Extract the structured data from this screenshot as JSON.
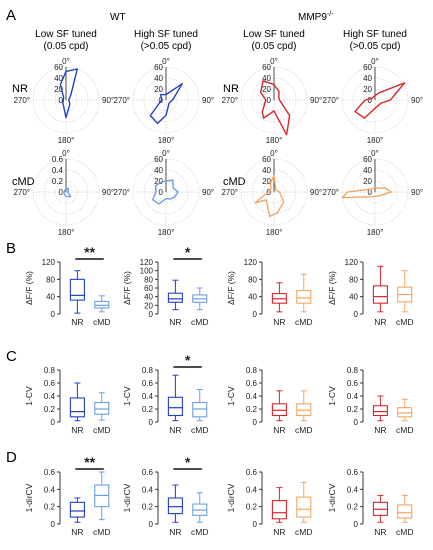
{
  "labels": {
    "panel_a": "A",
    "panel_b": "B",
    "panel_c": "C",
    "panel_d": "D",
    "wt": "WT",
    "mmp9": "MMP9",
    "mmp9_sup": "-/-",
    "col_low_1": "Low SF tuned",
    "col_low_2": "(0.05 cpd)",
    "col_high_1": "High SF tuned",
    "col_high_2": "(>0.05 cpd)",
    "row_nr": "NR",
    "row_cmd": "cMD",
    "deg0": "0°",
    "deg90": "90°",
    "deg180": "180°",
    "deg270": "270°",
    "group_nr": "NR",
    "group_cmd": "cMD",
    "sig_double": "**",
    "sig_single": "*"
  },
  "colors": {
    "wt_nr": "#2140c8",
    "wt_cmd": "#6f9fe0",
    "mmp_nr": "#d8262c",
    "mmp_cmd": "#f0a766",
    "axis": "#222222",
    "grid": "#cfcfcf"
  },
  "chart_data": [
    {
      "type": "polar",
      "panel": "A",
      "genotype": "WT",
      "tuning": "Low SF tuned (0.05 cpd)",
      "condition": "NR",
      "color": "wt_nr",
      "rticks": [
        "20",
        "40",
        "60"
      ],
      "rmax": 60,
      "angles": [
        0,
        20,
        45,
        90,
        135,
        180,
        225,
        270,
        315,
        340
      ],
      "radius": [
        52,
        60,
        12,
        5,
        10,
        32,
        8,
        5,
        6,
        30
      ]
    },
    {
      "type": "polar",
      "panel": "A",
      "genotype": "WT",
      "tuning": "High SF tuned (>0.05 cpd)",
      "condition": "NR",
      "color": "wt_nr",
      "rticks": [
        "20",
        "40",
        "60"
      ],
      "rmax": 60,
      "angles": [
        0,
        45,
        90,
        135,
        180,
        200,
        225,
        270,
        315
      ],
      "radius": [
        10,
        42,
        12,
        8,
        28,
        45,
        40,
        8,
        14
      ]
    },
    {
      "type": "polar",
      "panel": "A",
      "genotype": "MMP9-/-",
      "tuning": "Low SF tuned (0.05 cpd)",
      "condition": "NR",
      "color": "mmp_nr",
      "rticks": [
        "20",
        "40",
        "60"
      ],
      "rmax": 60,
      "angles": [
        0,
        30,
        60,
        90,
        135,
        160,
        180,
        210,
        225,
        270,
        300,
        330
      ],
      "radius": [
        28,
        18,
        10,
        10,
        40,
        70,
        20,
        38,
        30,
        15,
        28,
        40
      ]
    },
    {
      "type": "polar",
      "panel": "A",
      "genotype": "MMP9-/-",
      "tuning": "High SF tuned (>0.05 cpd)",
      "condition": "NR",
      "color": "mmp_nr",
      "rticks": [
        "20",
        "40",
        "60"
      ],
      "rmax": 60,
      "angles": [
        0,
        30,
        60,
        90,
        120,
        180,
        210,
        240,
        270,
        300
      ],
      "radius": [
        8,
        15,
        62,
        28,
        12,
        15,
        38,
        42,
        18,
        6
      ]
    },
    {
      "type": "polar",
      "panel": "A",
      "genotype": "WT",
      "tuning": "Low SF tuned (0.05 cpd)",
      "condition": "cMD",
      "color": "wt_cmd",
      "rticks": [
        "0.2",
        "0.4",
        "0.6"
      ],
      "rmax": 0.6,
      "angles": [
        0,
        30,
        60,
        90,
        135,
        180,
        225,
        270,
        315
      ],
      "radius": [
        0.05,
        0.08,
        0.05,
        0.03,
        0.12,
        0.08,
        0.05,
        0.03,
        0.04
      ]
    },
    {
      "type": "polar",
      "panel": "A",
      "genotype": "WT",
      "tuning": "High SF tuned (>0.05 cpd)",
      "condition": "cMD",
      "color": "wt_cmd",
      "rticks": [
        "20",
        "40",
        "60"
      ],
      "rmax": 60,
      "angles": [
        0,
        30,
        60,
        90,
        120,
        150,
        180,
        210,
        240,
        270,
        300,
        330
      ],
      "radius": [
        20,
        25,
        15,
        22,
        18,
        15,
        12,
        25,
        28,
        18,
        22,
        20
      ]
    },
    {
      "type": "polar",
      "panel": "A",
      "genotype": "MMP9-/-",
      "tuning": "Low SF tuned (0.05 cpd)",
      "condition": "cMD",
      "color": "mmp_cmd",
      "rticks": [
        "20",
        "40",
        "60"
      ],
      "rmax": 60,
      "angles": [
        0,
        20,
        45,
        90,
        135,
        170,
        190,
        225,
        240,
        270,
        315,
        340
      ],
      "radius": [
        30,
        8,
        5,
        10,
        25,
        38,
        45,
        20,
        40,
        10,
        8,
        18
      ]
    },
    {
      "type": "polar",
      "panel": "A",
      "genotype": "MMP9-/-",
      "tuning": "High SF tuned (>0.05 cpd)",
      "condition": "cMD",
      "color": "mmp_cmd",
      "rticks": [
        "20",
        "40",
        "60"
      ],
      "rmax": 60,
      "angles": [
        0,
        45,
        70,
        90,
        135,
        180,
        225,
        260,
        270,
        315
      ],
      "radius": [
        8,
        10,
        20,
        30,
        10,
        8,
        12,
        60,
        50,
        8
      ]
    },
    {
      "type": "box",
      "panel": "B",
      "ylabel": "ΔF/F (%)",
      "ylim": [
        0,
        120
      ],
      "yticks": [
        0,
        40,
        80,
        120
      ],
      "categories": [
        "NR",
        "cMD"
      ],
      "colors": [
        "wt_nr",
        "wt_cmd"
      ],
      "sig": "**",
      "boxes": [
        {
          "min": 2,
          "q1": 32,
          "median": 43,
          "q3": 80,
          "max": 100
        },
        {
          "min": 5,
          "q1": 14,
          "median": 20,
          "q3": 29,
          "max": 42
        }
      ]
    },
    {
      "type": "box",
      "panel": "B",
      "ylabel": "ΔF/F (%)",
      "ylim": [
        0,
        120
      ],
      "yticks": [
        0,
        20,
        40,
        60,
        80,
        100,
        120
      ],
      "categories": [
        "NR",
        "cMD"
      ],
      "colors": [
        "wt_nr",
        "wt_cmd"
      ],
      "sig": "*",
      "boxes": [
        {
          "min": 10,
          "q1": 27,
          "median": 35,
          "q3": 48,
          "max": 78
        },
        {
          "min": 10,
          "q1": 27,
          "median": 35,
          "q3": 44,
          "max": 60
        }
      ]
    },
    {
      "type": "box",
      "panel": "B",
      "ylabel": "ΔF/F (%)",
      "ylim": [
        0,
        120
      ],
      "yticks": [
        0,
        40,
        80,
        120
      ],
      "categories": [
        "NR",
        "cMD"
      ],
      "colors": [
        "mmp_nr",
        "mmp_cmd"
      ],
      "sig": "",
      "boxes": [
        {
          "min": 5,
          "q1": 25,
          "median": 35,
          "q3": 47,
          "max": 72
        },
        {
          "min": 5,
          "q1": 25,
          "median": 37,
          "q3": 54,
          "max": 92
        }
      ]
    },
    {
      "type": "box",
      "panel": "B",
      "ylabel": "ΔF/F (%)",
      "ylim": [
        0,
        120
      ],
      "yticks": [
        0,
        40,
        80,
        120
      ],
      "categories": [
        "NR",
        "cMD"
      ],
      "colors": [
        "mmp_nr",
        "mmp_cmd"
      ],
      "sig": "",
      "boxes": [
        {
          "min": 5,
          "q1": 25,
          "median": 40,
          "q3": 65,
          "max": 110
        },
        {
          "min": 5,
          "q1": 28,
          "median": 45,
          "q3": 62,
          "max": 100
        }
      ]
    },
    {
      "type": "box",
      "panel": "C",
      "ylabel": "1-CV",
      "ylim": [
        0,
        0.8
      ],
      "yticks": [
        0,
        0.2,
        0.4,
        0.6,
        0.8
      ],
      "categories": [
        "NR",
        "cMD"
      ],
      "colors": [
        "wt_nr",
        "wt_cmd"
      ],
      "sig": "",
      "boxes": [
        {
          "min": 0.02,
          "q1": 0.08,
          "median": 0.16,
          "q3": 0.37,
          "max": 0.6
        },
        {
          "min": 0.03,
          "q1": 0.12,
          "median": 0.2,
          "q3": 0.3,
          "max": 0.45
        }
      ]
    },
    {
      "type": "box",
      "panel": "C",
      "ylabel": "1-CV",
      "ylim": [
        0,
        0.8
      ],
      "yticks": [
        0,
        0.2,
        0.4,
        0.6,
        0.8
      ],
      "categories": [
        "NR",
        "cMD"
      ],
      "colors": [
        "wt_nr",
        "wt_cmd"
      ],
      "sig": "*",
      "boxes": [
        {
          "min": 0.02,
          "q1": 0.1,
          "median": 0.22,
          "q3": 0.38,
          "max": 0.72
        },
        {
          "min": 0.02,
          "q1": 0.08,
          "median": 0.2,
          "q3": 0.3,
          "max": 0.5
        }
      ]
    },
    {
      "type": "box",
      "panel": "C",
      "ylabel": "1-CV",
      "ylim": [
        0,
        0.8
      ],
      "yticks": [
        0,
        0.2,
        0.4,
        0.6,
        0.8
      ],
      "categories": [
        "NR",
        "cMD"
      ],
      "colors": [
        "mmp_nr",
        "mmp_cmd"
      ],
      "sig": "",
      "boxes": [
        {
          "min": 0.02,
          "q1": 0.1,
          "median": 0.18,
          "q3": 0.28,
          "max": 0.48
        },
        {
          "min": 0.02,
          "q1": 0.1,
          "median": 0.18,
          "q3": 0.28,
          "max": 0.48
        }
      ]
    },
    {
      "type": "box",
      "panel": "C",
      "ylabel": "1-CV",
      "ylim": [
        0,
        0.8
      ],
      "yticks": [
        0,
        0.2,
        0.4,
        0.6,
        0.8
      ],
      "categories": [
        "NR",
        "cMD"
      ],
      "colors": [
        "mmp_nr",
        "mmp_cmd"
      ],
      "sig": "",
      "boxes": [
        {
          "min": 0.02,
          "q1": 0.1,
          "median": 0.16,
          "q3": 0.25,
          "max": 0.4
        },
        {
          "min": 0.02,
          "q1": 0.08,
          "median": 0.14,
          "q3": 0.22,
          "max": 0.35
        }
      ]
    },
    {
      "type": "box",
      "panel": "D",
      "ylabel": "1-dirCV",
      "ylim": [
        0,
        0.6
      ],
      "yticks": [
        0,
        0.2,
        0.4,
        0.6
      ],
      "categories": [
        "NR",
        "cMD"
      ],
      "colors": [
        "wt_nr",
        "wt_cmd"
      ],
      "sig": "**",
      "boxes": [
        {
          "min": 0.02,
          "q1": 0.08,
          "median": 0.15,
          "q3": 0.25,
          "max": 0.3
        },
        {
          "min": 0.05,
          "q1": 0.2,
          "median": 0.33,
          "q3": 0.45,
          "max": 0.6
        }
      ]
    },
    {
      "type": "box",
      "panel": "D",
      "ylabel": "1-dirCV",
      "ylim": [
        0,
        0.6
      ],
      "yticks": [
        0,
        0.2,
        0.4,
        0.6
      ],
      "categories": [
        "NR",
        "cMD"
      ],
      "colors": [
        "wt_nr",
        "wt_cmd"
      ],
      "sig": "*",
      "boxes": [
        {
          "min": 0.02,
          "q1": 0.12,
          "median": 0.2,
          "q3": 0.3,
          "max": 0.45
        },
        {
          "min": 0.02,
          "q1": 0.1,
          "median": 0.16,
          "q3": 0.23,
          "max": 0.36
        }
      ]
    },
    {
      "type": "box",
      "panel": "D",
      "ylabel": "1-dirCV",
      "ylim": [
        0,
        0.6
      ],
      "yticks": [
        0,
        0.2,
        0.4,
        0.6
      ],
      "categories": [
        "NR",
        "cMD"
      ],
      "colors": [
        "mmp_nr",
        "mmp_cmd"
      ],
      "sig": "",
      "boxes": [
        {
          "min": 0.02,
          "q1": 0.06,
          "median": 0.13,
          "q3": 0.27,
          "max": 0.42
        },
        {
          "min": 0.02,
          "q1": 0.08,
          "median": 0.17,
          "q3": 0.31,
          "max": 0.48
        }
      ]
    },
    {
      "type": "box",
      "panel": "D",
      "ylabel": "1-dirCV",
      "ylim": [
        0,
        0.6
      ],
      "yticks": [
        0,
        0.2,
        0.4,
        0.6
      ],
      "categories": [
        "NR",
        "cMD"
      ],
      "colors": [
        "mmp_nr",
        "mmp_cmd"
      ],
      "sig": "",
      "boxes": [
        {
          "min": 0.02,
          "q1": 0.1,
          "median": 0.17,
          "q3": 0.25,
          "max": 0.33
        },
        {
          "min": 0.02,
          "q1": 0.07,
          "median": 0.13,
          "q3": 0.22,
          "max": 0.33
        }
      ]
    }
  ]
}
